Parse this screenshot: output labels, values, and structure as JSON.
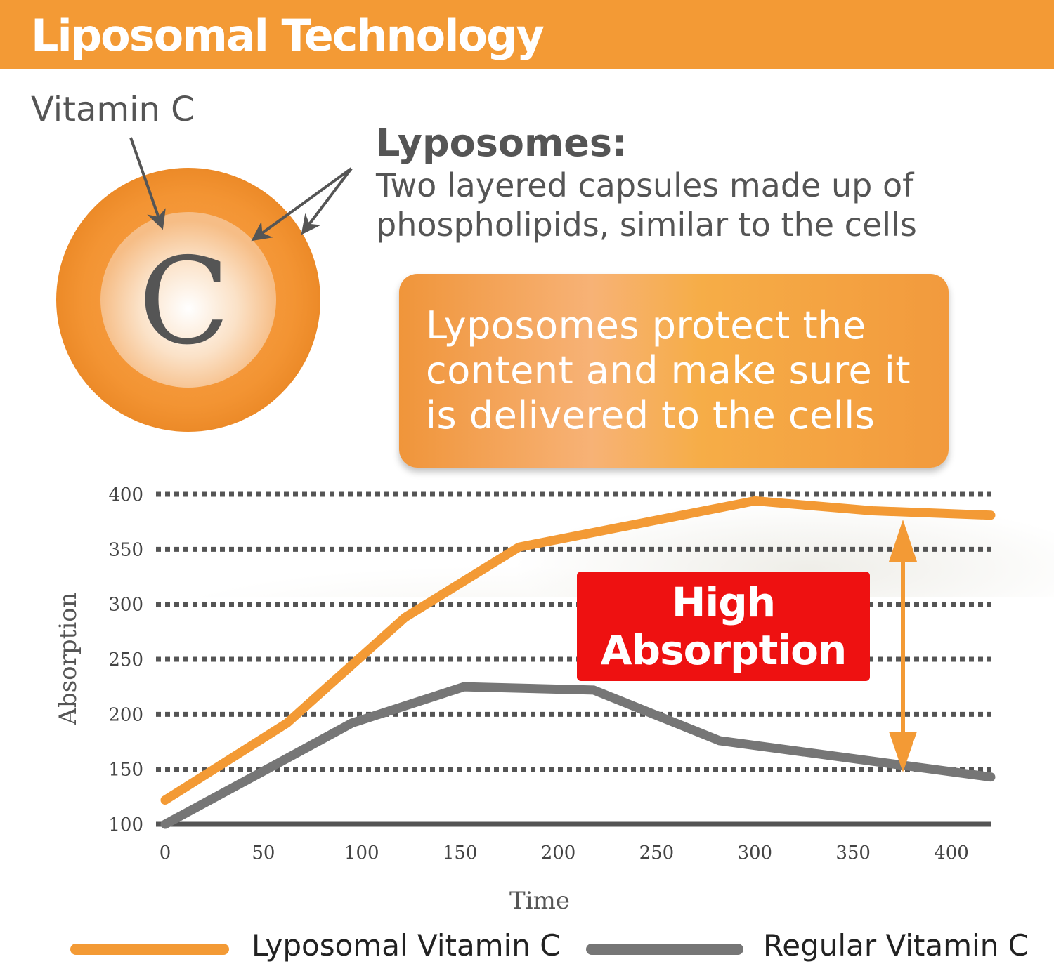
{
  "header": {
    "title": "Liposomal Technology"
  },
  "diagram": {
    "vitamin_label": "Vitamin C",
    "core_letter": "C",
    "lyposomes_title": "Lyposomes:",
    "lyposomes_desc": "Two layered capsules made up of phospholipids, similar to the cells"
  },
  "callout": {
    "text": "Lyposomes protect the content and make sure it is delivered to the cells"
  },
  "badge": {
    "text_line1": "High",
    "text_line2": "Absorption"
  },
  "colors": {
    "orange": "#f39a35",
    "gray": "#767676",
    "red": "#ee1111"
  },
  "chart_data": {
    "type": "line",
    "xlabel": "Time",
    "ylabel": "Absorption",
    "xlim": [
      0,
      420
    ],
    "ylim": [
      100,
      400
    ],
    "x_ticks": [
      0,
      50,
      100,
      150,
      200,
      250,
      300,
      350,
      400
    ],
    "y_ticks": [
      100,
      150,
      200,
      250,
      300,
      350,
      400
    ],
    "grid": "horizontal-dotted",
    "legend": "bottom",
    "series": [
      {
        "name": "Lyposomal Vitamin C",
        "color": "#f39a35",
        "points": [
          [
            0,
            122
          ],
          [
            62,
            192
          ],
          [
            122,
            288
          ],
          [
            180,
            352
          ],
          [
            300,
            394
          ],
          [
            360,
            385
          ],
          [
            420,
            381
          ]
        ]
      },
      {
        "name": "Regular Vitamin C",
        "color": "#767676",
        "points": [
          [
            0,
            100
          ],
          [
            60,
            158
          ],
          [
            95,
            192
          ],
          [
            152,
            225
          ],
          [
            218,
            222
          ],
          [
            282,
            176
          ],
          [
            420,
            143
          ]
        ]
      }
    ]
  }
}
